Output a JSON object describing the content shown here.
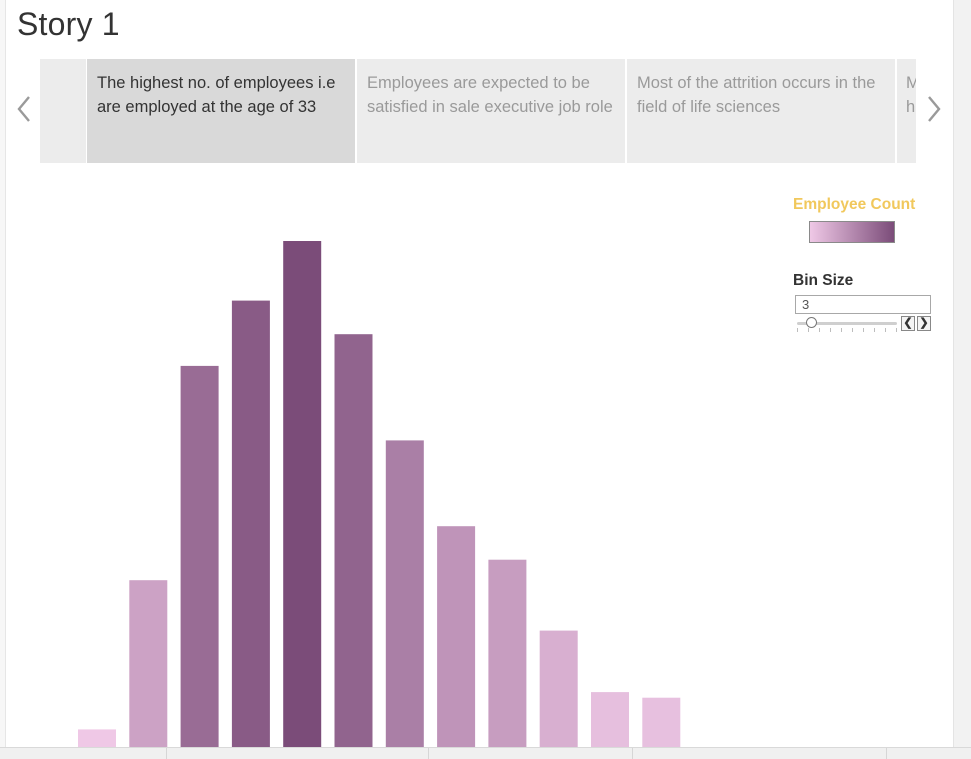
{
  "title": "Story 1",
  "nav": {
    "prev_icon": "chevron-left-icon",
    "next_icon": "chevron-right-icon"
  },
  "story_points": [
    {
      "text": "",
      "active": false
    },
    {
      "text": "The highest no. of employees i.e are employed at the age of 33",
      "active": true
    },
    {
      "text": "Employees are expected to be satisfied in sale executive job role",
      "active": false
    },
    {
      "text": "Most of the attrition occurs in the field of life sciences",
      "active": false
    },
    {
      "text": "M th o",
      "active": false
    }
  ],
  "legend": {
    "title": "Employee Count",
    "color_low": "#efc8e6",
    "color_high": "#7b4c79"
  },
  "parameter": {
    "title": "Bin Size",
    "value": "3",
    "slider_fraction": 0.12
  },
  "chart_data": {
    "type": "bar",
    "values": [
      10,
      90,
      205,
      240,
      272,
      222,
      165,
      119,
      101,
      63,
      30,
      27
    ],
    "ylim": [
      0,
      272
    ],
    "axis_labels": false
  }
}
